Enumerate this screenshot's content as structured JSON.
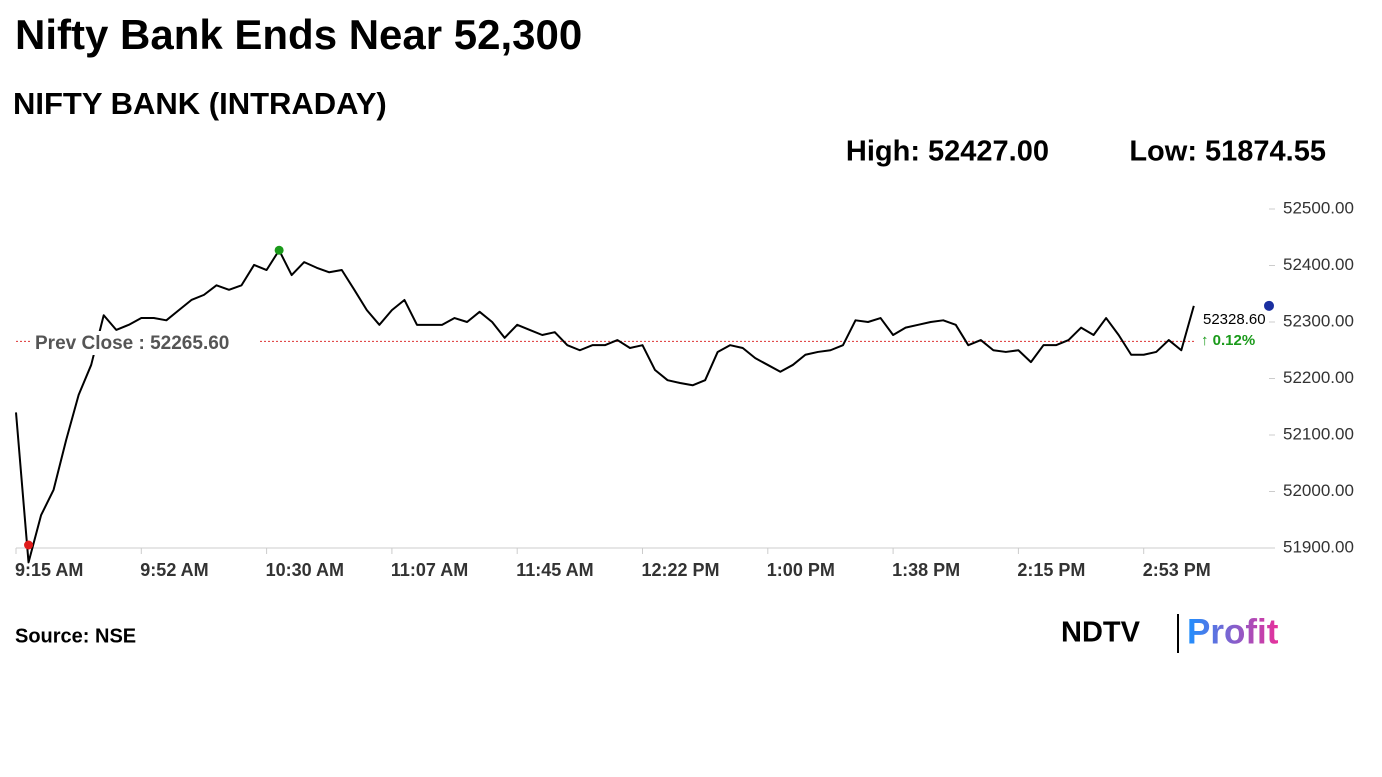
{
  "chart_data": {
    "type": "line",
    "title": "Nifty Bank Ends Near 52,300",
    "subtitle": "NIFTY BANK (INTRADAY)",
    "high": {
      "value": 52427,
      "label": "High: 52427.00"
    },
    "low": {
      "value": 51874.55,
      "label": "Low: 51874.55"
    },
    "prev_close": {
      "value": 52265.6,
      "label": "Prev Close : 52265.60"
    },
    "last_label": "52328.60",
    "change_label": "↑ 0.12%",
    "source": "Source: NSE",
    "logo": {
      "brand": "NDTV",
      "product": "Profit"
    },
    "categories": [
      "9:15 AM",
      null,
      null,
      null,
      null,
      null,
      null,
      null,
      null,
      null,
      "9:52 AM",
      null,
      null,
      null,
      null,
      null,
      null,
      null,
      null,
      null,
      "10:30 AM",
      null,
      null,
      null,
      null,
      null,
      null,
      null,
      null,
      null,
      "11:07 AM",
      null,
      null,
      null,
      null,
      null,
      null,
      null,
      null,
      null,
      "11:45 AM",
      null,
      null,
      null,
      null,
      null,
      null,
      null,
      null,
      null,
      "12:22 PM",
      null,
      null,
      null,
      null,
      null,
      null,
      null,
      null,
      null,
      "1:00 PM",
      null,
      null,
      null,
      null,
      null,
      null,
      null,
      null,
      null,
      "1:38 PM",
      null,
      null,
      null,
      null,
      null,
      null,
      null,
      null,
      null,
      "2:15 PM",
      null,
      null,
      null,
      null,
      null,
      null,
      null,
      null,
      null,
      "2:53 PM",
      null,
      null,
      null,
      null
    ],
    "xlim": [
      0,
      100
    ],
    "series": [
      {
        "name": "NIFTY BANK",
        "color": "#000000",
        "values": [
          52140,
          51874.55,
          51958,
          52003,
          52091,
          52171,
          52224,
          52312,
          52286,
          52295,
          52307,
          52307,
          52303,
          52321,
          52339,
          52348,
          52365,
          52357,
          52365,
          52401,
          52392,
          52427,
          52383,
          52406,
          52396,
          52388,
          52392,
          52357,
          52321,
          52295,
          52321,
          52339,
          52295,
          52295,
          52295,
          52307,
          52300,
          52318,
          52300,
          52272,
          52295,
          52286,
          52277,
          52282,
          52259,
          52250,
          52259,
          52259,
          52268,
          52254,
          52259,
          52215,
          52197,
          52192,
          52188,
          52197,
          52247,
          52259,
          52254,
          52236,
          52224,
          52212,
          52224,
          52242,
          52247,
          52250,
          52259,
          52303,
          52300,
          52307,
          52277,
          52290,
          52295,
          52300,
          52303,
          52295,
          52259,
          52268,
          52250,
          52247,
          52250,
          52229,
          52259,
          52259,
          52268,
          52290,
          52277,
          52307,
          52277,
          52242,
          52242,
          52247,
          52268,
          52250,
          52328.6
        ]
      }
    ],
    "ylim": [
      51900,
      52500
    ],
    "yticks": [
      {
        "value": 51900,
        "label": "51900.00"
      },
      {
        "value": 52000,
        "label": "52000.00"
      },
      {
        "value": 52100,
        "label": "52100.00"
      },
      {
        "value": 52200,
        "label": "52200.00"
      },
      {
        "value": 52300,
        "label": "52300.00"
      },
      {
        "value": 52400,
        "label": "52400.00"
      },
      {
        "value": 52500,
        "label": "52500.00"
      }
    ],
    "grid": false
  }
}
